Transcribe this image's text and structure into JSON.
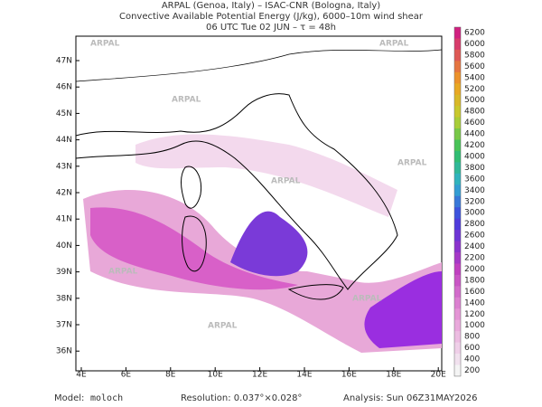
{
  "header": {
    "line1": "ARPAL (Genoa, Italy)  –  ISAC-CNR (Bologna, Italy)",
    "line2": "Convective Available Potential Energy (J/kg), 6000–10m wind shear",
    "line3": "06 UTC Tue 02 JUN  –  τ = 48h"
  },
  "map": {
    "watermark": "ARPAL",
    "lat_labels": [
      "47N",
      "46N",
      "45N",
      "44N",
      "43N",
      "42N",
      "41N",
      "40N",
      "39N",
      "38N",
      "37N",
      "36N"
    ],
    "lon_labels": [
      "4E",
      "6E",
      "8E",
      "10E",
      "12E",
      "14E",
      "16E",
      "18E",
      "20E"
    ]
  },
  "colorbar": {
    "labels": [
      "6200",
      "6000",
      "5800",
      "5600",
      "5400",
      "5200",
      "5000",
      "4800",
      "4600",
      "4400",
      "4200",
      "4000",
      "3800",
      "3600",
      "3400",
      "3200",
      "3000",
      "2800",
      "2600",
      "2400",
      "2200",
      "2000",
      "1800",
      "1600",
      "1400",
      "1200",
      "1000",
      "800",
      "600",
      "400",
      "200"
    ]
  },
  "footer": {
    "model_label": "Model:",
    "model": "moloch",
    "resolution": "Resolution: 0.037°×0.028°",
    "analysis": "Analysis: Sun 06Z31MAY2026"
  }
}
